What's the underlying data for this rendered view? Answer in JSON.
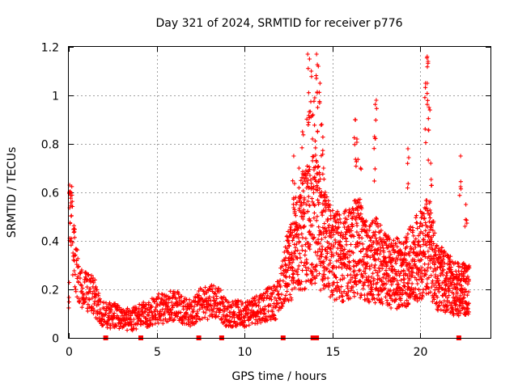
{
  "chart_data": {
    "type": "scatter",
    "title": "Day 321 of 2024, SRMTID for receiver p776",
    "xlabel": "GPS time / hours",
    "ylabel": "SRMTID / TECUs",
    "xlim": [
      0,
      24
    ],
    "ylim": [
      0,
      1.2
    ],
    "x_ticks": [
      0,
      5,
      10,
      15,
      20
    ],
    "x_tick_labels": [
      "0",
      "5",
      "10",
      "15",
      "20"
    ],
    "y_ticks": [
      0,
      0.2,
      0.4,
      0.6,
      0.8,
      1.0,
      1.2
    ],
    "y_tick_labels": [
      "0",
      "0.2",
      "0.4",
      "0.6",
      "0.8",
      "1",
      "1.2"
    ],
    "grid": true,
    "marker": "plus",
    "series_color": "#ff0000",
    "trend": [
      [
        0.0,
        0.17
      ],
      [
        0.1,
        0.5
      ],
      [
        0.3,
        0.35
      ],
      [
        0.6,
        0.2
      ],
      [
        1.0,
        0.19
      ],
      [
        1.4,
        0.18
      ],
      [
        1.8,
        0.1
      ],
      [
        2.5,
        0.09
      ],
      [
        3.0,
        0.09
      ],
      [
        3.5,
        0.07
      ],
      [
        4.0,
        0.09
      ],
      [
        4.5,
        0.1
      ],
      [
        5.0,
        0.12
      ],
      [
        5.5,
        0.12
      ],
      [
        6.0,
        0.14
      ],
      [
        6.5,
        0.12
      ],
      [
        7.0,
        0.1
      ],
      [
        7.5,
        0.14
      ],
      [
        8.0,
        0.15
      ],
      [
        8.5,
        0.15
      ],
      [
        9.0,
        0.1
      ],
      [
        10.0,
        0.1
      ],
      [
        11.0,
        0.13
      ],
      [
        11.8,
        0.15
      ],
      [
        12.5,
        0.3
      ],
      [
        13.0,
        0.4
      ],
      [
        13.5,
        0.45
      ],
      [
        14.0,
        0.5
      ],
      [
        14.5,
        0.4
      ],
      [
        15.0,
        0.35
      ],
      [
        15.5,
        0.33
      ],
      [
        16.0,
        0.35
      ],
      [
        16.5,
        0.38
      ],
      [
        17.0,
        0.3
      ],
      [
        17.5,
        0.32
      ],
      [
        18.0,
        0.28
      ],
      [
        18.5,
        0.27
      ],
      [
        19.0,
        0.26
      ],
      [
        19.5,
        0.3
      ],
      [
        20.0,
        0.35
      ],
      [
        20.5,
        0.38
      ],
      [
        21.0,
        0.25
      ],
      [
        21.5,
        0.23
      ],
      [
        22.0,
        0.2
      ],
      [
        22.5,
        0.2
      ],
      [
        22.8,
        0.2
      ]
    ],
    "spikes": [
      [
        0.05,
        0.63
      ],
      [
        0.1,
        0.6
      ],
      [
        0.3,
        0.45
      ],
      [
        13.3,
        0.85
      ],
      [
        13.6,
        1.17
      ],
      [
        13.7,
        1.15
      ],
      [
        13.8,
        1.1
      ],
      [
        13.9,
        0.92
      ],
      [
        14.0,
        0.99
      ],
      [
        14.1,
        1.17
      ],
      [
        14.2,
        1.12
      ],
      [
        14.3,
        1.05
      ],
      [
        14.4,
        0.88
      ],
      [
        14.5,
        0.7
      ],
      [
        14.6,
        0.6
      ],
      [
        16.3,
        0.9
      ],
      [
        16.4,
        0.82
      ],
      [
        16.6,
        0.7
      ],
      [
        17.5,
        0.98
      ],
      [
        17.4,
        0.83
      ],
      [
        19.3,
        0.78
      ],
      [
        20.3,
        1.05
      ],
      [
        20.4,
        1.16
      ],
      [
        20.45,
        1.14
      ],
      [
        20.5,
        0.95
      ],
      [
        20.6,
        0.72
      ],
      [
        22.3,
        0.75
      ],
      [
        22.6,
        0.55
      ],
      [
        12.8,
        0.75
      ],
      [
        13.1,
        0.7
      ]
    ],
    "data_gaps": [
      2.1,
      4.1,
      7.4,
      8.7,
      12.2,
      13.9,
      14.1,
      22.2
    ]
  }
}
